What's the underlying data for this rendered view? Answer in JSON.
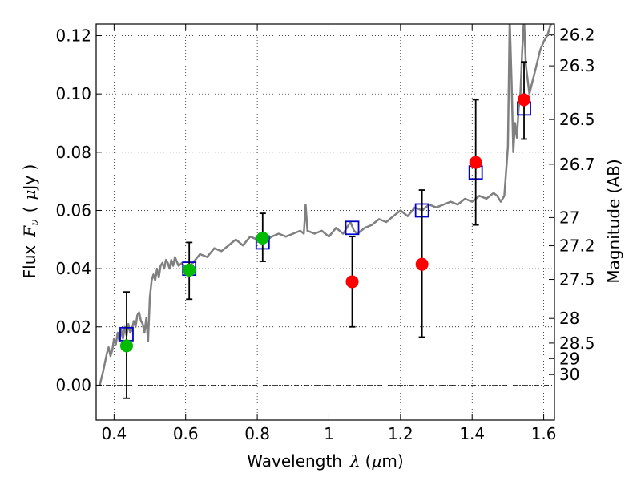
{
  "chart_data": {
    "type": "scatter",
    "title": "",
    "xlabel": {
      "prefix": "Wavelength",
      "symbol": "λ",
      "open": "(",
      "unit_symbol": "μ",
      "unit_rest": "m)"
    },
    "ylabel": {
      "prefix": "Flux",
      "symbol": "F",
      "subscript": "ν",
      "open": "(",
      "unit_symbol": "μ",
      "unit_rest": "Jy )"
    },
    "y2label": "Magnitude (AB)",
    "xlim": [
      0.35,
      1.63
    ],
    "ylim": [
      -0.012,
      0.124
    ],
    "x_ticks": [
      {
        "value": 0.4,
        "label": "0.4"
      },
      {
        "value": 0.6,
        "label": "0.6"
      },
      {
        "value": 0.8,
        "label": "0.8"
      },
      {
        "value": 1.0,
        "label": "1"
      },
      {
        "value": 1.2,
        "label": "1.2"
      },
      {
        "value": 1.4,
        "label": "1.4"
      },
      {
        "value": 1.6,
        "label": "1.6"
      }
    ],
    "y_ticks": [
      {
        "value": 0.0,
        "label": "0.00"
      },
      {
        "value": 0.02,
        "label": "0.02"
      },
      {
        "value": 0.04,
        "label": "0.04"
      },
      {
        "value": 0.06,
        "label": "0.06"
      },
      {
        "value": 0.08,
        "label": "0.08"
      },
      {
        "value": 0.1,
        "label": "0.10"
      },
      {
        "value": 0.12,
        "label": "0.12"
      }
    ],
    "magnitude_ticks": [
      {
        "mag": 26.2,
        "label": "26.2"
      },
      {
        "mag": 26.3,
        "label": "26.3"
      },
      {
        "mag": 26.5,
        "label": "26.5"
      },
      {
        "mag": 26.7,
        "label": "26.7"
      },
      {
        "mag": 27,
        "label": "27"
      },
      {
        "mag": 27.2,
        "label": "27.2"
      },
      {
        "mag": 27.5,
        "label": "27.5"
      },
      {
        "mag": 28,
        "label": "28"
      },
      {
        "mag": 28.5,
        "label": "28.5"
      },
      {
        "mag": 29,
        "label": "29"
      },
      {
        "mag": 30,
        "label": "30"
      }
    ],
    "grid": true,
    "zero_line": true,
    "colors": {
      "model": "#808080",
      "model_points": "#0000cc",
      "observed_green": "#00bb00",
      "observed_red": "#ff0000",
      "errorbar": "#000000"
    },
    "series": [
      {
        "kind": "line",
        "x": [
          0.36,
          0.37,
          0.375,
          0.38,
          0.385,
          0.39,
          0.395,
          0.4,
          0.405,
          0.41,
          0.415,
          0.42,
          0.425,
          0.43,
          0.435,
          0.44,
          0.445,
          0.45,
          0.455,
          0.46,
          0.465,
          0.47,
          0.475,
          0.48,
          0.485,
          0.49,
          0.495,
          0.5,
          0.505,
          0.51,
          0.515,
          0.52,
          0.525,
          0.53,
          0.535,
          0.54,
          0.545,
          0.55,
          0.555,
          0.56,
          0.565,
          0.57,
          0.58,
          0.59,
          0.6,
          0.62,
          0.64,
          0.66,
          0.68,
          0.7,
          0.72,
          0.74,
          0.76,
          0.78,
          0.8,
          0.82,
          0.84,
          0.86,
          0.88,
          0.9,
          0.92,
          0.93,
          0.935,
          0.94,
          0.96,
          0.98,
          1.0,
          1.02,
          1.04,
          1.06,
          1.07,
          1.08,
          1.1,
          1.12,
          1.14,
          1.16,
          1.18,
          1.2,
          1.22,
          1.24,
          1.26,
          1.28,
          1.3,
          1.32,
          1.34,
          1.36,
          1.38,
          1.4,
          1.42,
          1.44,
          1.46,
          1.47,
          1.48,
          1.49,
          1.5,
          1.505,
          1.51,
          1.515,
          1.52,
          1.525,
          1.53,
          1.535,
          1.54,
          1.545,
          1.55,
          1.56,
          1.57,
          1.58,
          1.59,
          1.6,
          1.61,
          1.62
        ],
        "y": [
          0.0,
          0.005,
          0.008,
          0.011,
          0.013,
          0.01,
          0.012,
          0.016,
          0.014,
          0.018,
          0.015,
          0.019,
          0.016,
          0.02,
          0.017,
          0.021,
          0.018,
          0.019,
          0.022,
          0.02,
          0.024,
          0.025,
          0.022,
          0.021,
          0.018,
          0.023,
          0.015,
          0.03,
          0.036,
          0.038,
          0.036,
          0.04,
          0.037,
          0.041,
          0.042,
          0.04,
          0.043,
          0.042,
          0.04,
          0.043,
          0.041,
          0.044,
          0.041,
          0.042,
          0.04,
          0.042,
          0.045,
          0.044,
          0.047,
          0.046,
          0.048,
          0.05,
          0.048,
          0.051,
          0.05,
          0.049,
          0.051,
          0.052,
          0.051,
          0.052,
          0.053,
          0.052,
          0.062,
          0.053,
          0.052,
          0.053,
          0.051,
          0.054,
          0.052,
          0.056,
          0.053,
          0.052,
          0.054,
          0.055,
          0.057,
          0.056,
          0.058,
          0.06,
          0.058,
          0.061,
          0.06,
          0.062,
          0.061,
          0.062,
          0.063,
          0.062,
          0.064,
          0.063,
          0.065,
          0.064,
          0.066,
          0.065,
          0.063,
          0.065,
          0.082,
          0.126,
          0.105,
          0.08,
          0.09,
          0.085,
          0.095,
          0.1,
          0.115,
          0.126,
          0.11,
          0.1,
          0.105,
          0.11,
          0.115,
          0.118,
          0.12,
          0.124
        ]
      },
      {
        "kind": "square",
        "x": [
          0.435,
          0.61,
          0.815,
          1.065,
          1.26,
          1.41,
          1.545
        ],
        "y": [
          0.0175,
          0.04,
          0.049,
          0.054,
          0.06,
          0.073,
          0.095
        ]
      },
      {
        "kind": "errorbar",
        "x": [
          0.435,
          0.61,
          0.815,
          1.065,
          1.26,
          1.41,
          1.545
        ],
        "y": [
          0.0135,
          0.0395,
          0.0505,
          0.0355,
          0.0415,
          0.0765,
          0.098
        ],
        "ylow": [
          -0.0045,
          0.0295,
          0.0425,
          0.02,
          0.0165,
          0.055,
          0.0845
        ],
        "yhigh": [
          0.032,
          0.049,
          0.059,
          0.051,
          0.067,
          0.098,
          0.111
        ]
      },
      {
        "kind": "circle",
        "x": [
          0.435,
          0.61,
          0.815
        ],
        "y": [
          0.0135,
          0.0395,
          0.0505
        ],
        "color": "#00bb00"
      },
      {
        "kind": "circle",
        "x": [
          1.065,
          1.26,
          1.41,
          1.545
        ],
        "y": [
          0.0355,
          0.0415,
          0.0765,
          0.098
        ],
        "color": "#ff0000"
      }
    ]
  }
}
